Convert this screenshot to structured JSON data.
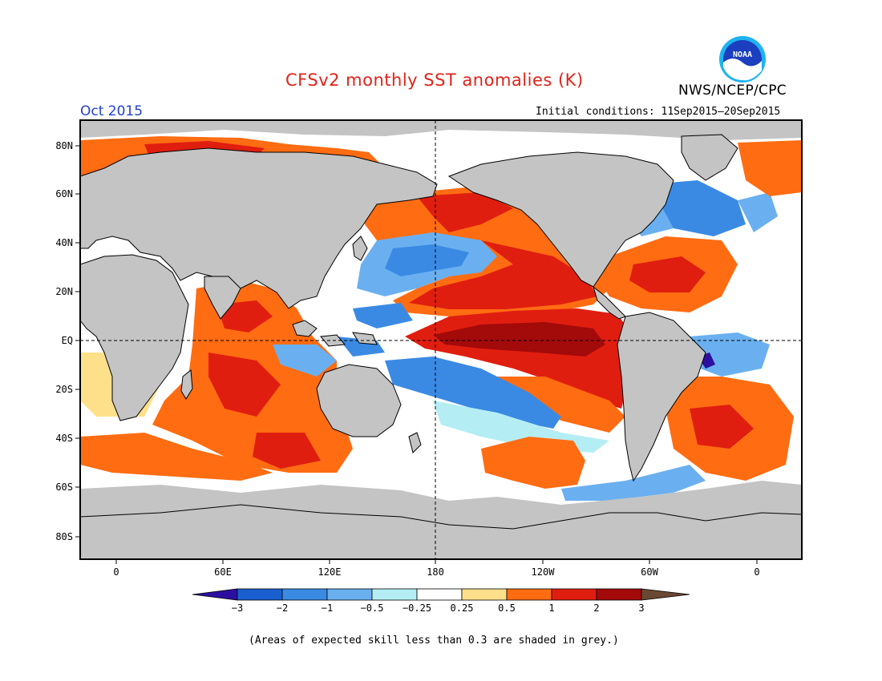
{
  "header": {
    "title": "CFSv2 monthly SST anomalies (K)",
    "agency": "NWS/NCEP/CPC",
    "logo_text": "NOAA",
    "month": "Oct 2015",
    "initial_conditions": "Initial conditions: 11Sep2015—20Sep2015"
  },
  "map": {
    "lat_labels": [
      "80N",
      "60N",
      "40N",
      "20N",
      "EQ",
      "20S",
      "40S",
      "60S",
      "80S"
    ],
    "lon_labels": [
      "0",
      "60E",
      "120E",
      "180",
      "120W",
      "60W",
      "0"
    ]
  },
  "colorbar": {
    "labels": [
      "−3",
      "−2",
      "−1",
      "−0.5",
      "−0.25",
      "0.25",
      "0.5",
      "1",
      "2",
      "3"
    ],
    "colors": [
      "#2c0fa0",
      "#1a5fd0",
      "#3a8ae4",
      "#6ab0f0",
      "#b4eef4",
      "#ffffff",
      "#ffe08a",
      "#ff6c12",
      "#e01e10",
      "#a30a0a",
      "#6b4834"
    ]
  },
  "footer": {
    "note": "(Areas of expected skill less than 0.3 are shaded in grey.)"
  },
  "palette": {
    "land": "#c4c4c4",
    "title_red": "#e0231a",
    "month_blue": "#1f3fd6"
  }
}
